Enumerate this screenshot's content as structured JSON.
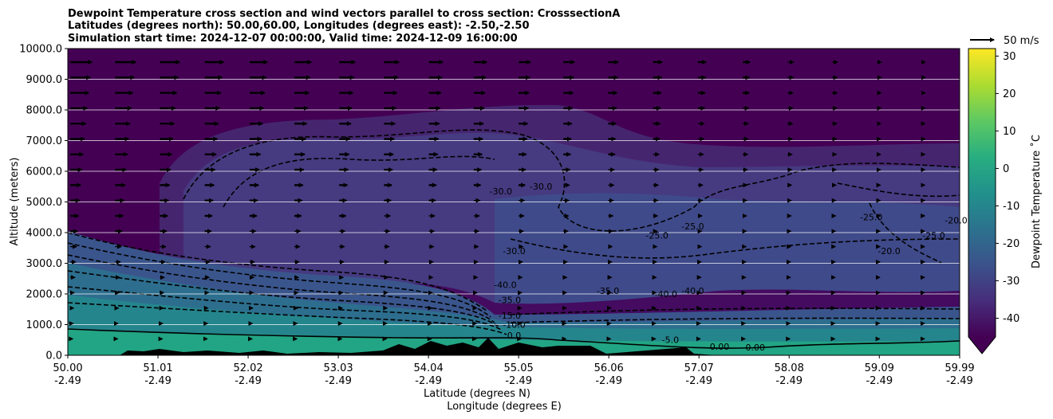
{
  "chart_data": {
    "type": "heatmap",
    "title_lines": [
      "Dewpoint Temperature cross section and wind vectors parallel to cross section: CrosssectionA",
      "Latitudes (degrees north): 50.00,60.00, Longitudes (degrees east): -2.50,-2.50",
      "Simulation start time: 2024-12-07 00:00:00, Valid time: 2024-12-09 16:00:00"
    ],
    "ylabel": "Altitude (meters)",
    "xlabel_lat": "Latitude (degrees N)",
    "xlabel_lon": "Longitude (degrees E)",
    "ylim": [
      0,
      10000
    ],
    "yticks": [
      "0.0",
      "1000.0",
      "2000.0",
      "3000.0",
      "4000.0",
      "5000.0",
      "6000.0",
      "7000.0",
      "8000.0",
      "9000.0",
      "10000.0"
    ],
    "xticks_lat": [
      "50.00",
      "51.01",
      "52.02",
      "53.03",
      "54.04",
      "55.05",
      "56.06",
      "57.07",
      "58.08",
      "59.09",
      "59.99"
    ],
    "xticks_lon": [
      "-2.49",
      "-2.49",
      "-2.49",
      "-2.49",
      "-2.49",
      "-2.49",
      "-2.49",
      "-2.49",
      "-2.49",
      "-2.49",
      "-2.49"
    ],
    "grid": "horizontal",
    "colorbar": {
      "label": "Dewpoint Temperature ˚C",
      "min": -45,
      "max": 32,
      "ticks": [
        "-40",
        "-30",
        "-20",
        "-10",
        "0",
        "10",
        "20",
        "30"
      ],
      "extend": "min",
      "colormap": [
        "#440154",
        "#472d7b",
        "#3b528b",
        "#2c728e",
        "#21918c",
        "#28ae80",
        "#5ec962",
        "#addc30",
        "#fde725"
      ]
    },
    "wind_key": "50 m/s",
    "contour_labels": [
      {
        "text": "-30.0",
        "lat": 54.85,
        "alt": 5250
      },
      {
        "text": "-30.0",
        "lat": 55.3,
        "alt": 5400
      },
      {
        "text": "-25.0",
        "lat": 56.6,
        "alt": 3800
      },
      {
        "text": "-25.0",
        "lat": 57.0,
        "alt": 4100
      },
      {
        "text": "-30.0",
        "lat": 55.0,
        "alt": 3300
      },
      {
        "text": "-25.0",
        "lat": 59.0,
        "alt": 4400
      },
      {
        "text": "-20.0",
        "lat": 59.2,
        "alt": 3300
      },
      {
        "text": "-25.0",
        "lat": 59.7,
        "alt": 3800
      },
      {
        "text": "-20.0",
        "lat": 59.95,
        "alt": 4300
      },
      {
        "text": "-35.0",
        "lat": 56.05,
        "alt": 2000
      },
      {
        "text": "-40.0",
        "lat": 56.7,
        "alt": 1900
      },
      {
        "text": "-40.0",
        "lat": 57.0,
        "alt": 2000
      },
      {
        "text": "-40.0",
        "lat": 54.9,
        "alt": 2200
      },
      {
        "text": "-35.0",
        "lat": 54.95,
        "alt": 1700
      },
      {
        "text": "-15.0",
        "lat": 54.95,
        "alt": 1200
      },
      {
        "text": "-10.0",
        "lat": 55.0,
        "alt": 900
      },
      {
        "text": "0.0",
        "lat": 55.0,
        "alt": 550
      },
      {
        "text": "-5.0",
        "lat": 56.75,
        "alt": 400
      },
      {
        "text": "0.00",
        "lat": 57.3,
        "alt": 180
      },
      {
        "text": "0.00",
        "lat": 57.7,
        "alt": 150
      }
    ]
  }
}
